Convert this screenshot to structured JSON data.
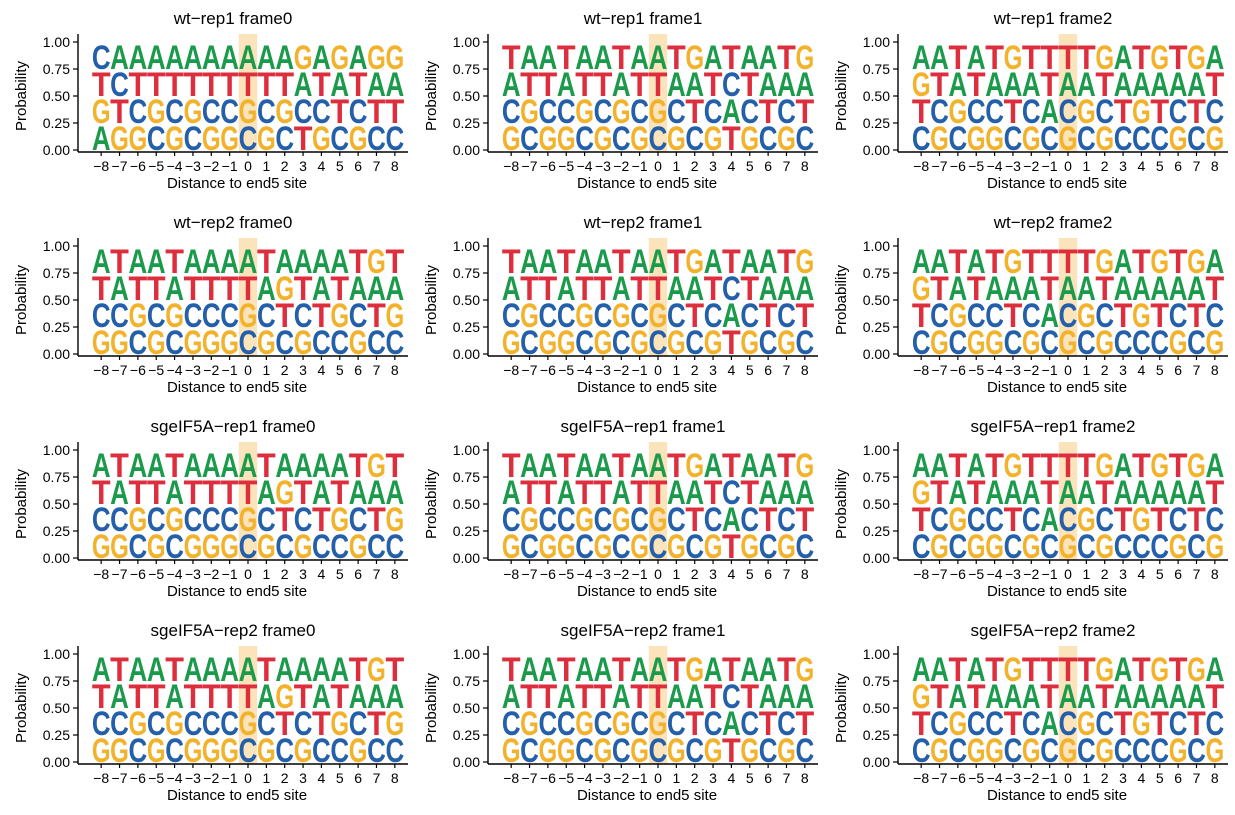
{
  "figure": {
    "axis_labels": {
      "ylabel": "Probability",
      "xlabel": "Distance to  end5 site"
    },
    "colors": {
      "A": "#1a9a4a",
      "C": "#245faa",
      "G": "#f2b22c",
      "T": "#dc2e3c",
      "highlight": "#fbe3bb"
    }
  },
  "chart_data": [
    {
      "type": "sequence_logo",
      "title": "wt−rep1 frame0",
      "xlabel": "Distance to  end5 site",
      "ylabel": "Probability",
      "x_ticks": [
        "−8",
        "−7",
        "−6",
        "−5",
        "−4",
        "−3",
        "−2",
        "−1",
        "0",
        "1",
        "2",
        "3",
        "4",
        "5",
        "6",
        "7",
        "8"
      ],
      "y_ticks": [
        "0.00",
        "0.25",
        "0.50",
        "0.75",
        "1.00"
      ],
      "ylim": [
        0,
        1
      ],
      "highlight_position": "0",
      "stacks": [
        "AGTC",
        "GTCA",
        "GCTA",
        "CGTA",
        "GCTA",
        "CGTA",
        "GCTA",
        "GCTA",
        "CGTA",
        "GCTA",
        "CGTA",
        "TCAG",
        "GCTA",
        "CTAG",
        "GCTA",
        "CTAG",
        "CTAG"
      ]
    },
    {
      "type": "sequence_logo",
      "title": "wt−rep1 frame1",
      "xlabel": "Distance to  end5 site",
      "ylabel": "Probability",
      "x_ticks": [
        "−8",
        "−7",
        "−6",
        "−5",
        "−4",
        "−3",
        "−2",
        "−1",
        "0",
        "1",
        "2",
        "3",
        "4",
        "5",
        "6",
        "7",
        "8"
      ],
      "y_ticks": [
        "0.00",
        "0.25",
        "0.50",
        "0.75",
        "1.00"
      ],
      "ylim": [
        0,
        1
      ],
      "highlight_position": "0",
      "stacks": [
        "GCAT",
        "CGTA",
        "GCTA",
        "GCAT",
        "CGTA",
        "GCTA",
        "CGAT",
        "GCTA",
        "CGTA",
        "GCAT",
        "CTAG",
        "GCTA",
        "TACT",
        "GCTA",
        "CTAA",
        "GCAT",
        "CTAG"
      ]
    },
    {
      "type": "sequence_logo",
      "title": "wt−rep1 frame2",
      "xlabel": "Distance to  end5 site",
      "ylabel": "Probability",
      "x_ticks": [
        "−8",
        "−7",
        "−6",
        "−5",
        "−4",
        "−3",
        "−2",
        "−1",
        "0",
        "1",
        "2",
        "3",
        "4",
        "5",
        "6",
        "7",
        "8"
      ],
      "y_ticks": [
        "0.00",
        "0.25",
        "0.50",
        "0.75",
        "1.00"
      ],
      "ylim": [
        0,
        1
      ],
      "highlight_position": "0",
      "stacks": [
        "CTGA",
        "GCTA",
        "CGAT",
        "GCTA",
        "GCAT",
        "CTAG",
        "GCAT",
        "CATT",
        "GCAT",
        "CGAT",
        "GCTG",
        "CTAA",
        "CGAT",
        "CTAG",
        "GCAT",
        "CTAG",
        "GCTA"
      ]
    },
    {
      "type": "sequence_logo",
      "title": "wt−rep2 frame0",
      "xlabel": "Distance to  end5 site",
      "ylabel": "Probability",
      "x_ticks": [
        "−8",
        "−7",
        "−6",
        "−5",
        "−4",
        "−3",
        "−2",
        "−1",
        "0",
        "1",
        "2",
        "3",
        "4",
        "5",
        "6",
        "7",
        "8"
      ],
      "y_ticks": [
        "0.00",
        "0.25",
        "0.50",
        "0.75",
        "1.00"
      ],
      "ylim": [
        0,
        1
      ],
      "highlight_position": "0",
      "stacks": [
        "GCTA",
        "GCAT",
        "CGTA",
        "GCTA",
        "CGAT",
        "GCTA",
        "GCTA",
        "GCTA",
        "CGTA",
        "GCAT",
        "CTGA",
        "GCTA",
        "CTAA",
        "CGTA",
        "GCAT",
        "CTAG",
        "CGAT"
      ]
    },
    {
      "type": "sequence_logo",
      "title": "wt−rep2 frame1",
      "xlabel": "Distance to  end5 site",
      "ylabel": "Probability",
      "x_ticks": [
        "−8",
        "−7",
        "−6",
        "−5",
        "−4",
        "−3",
        "−2",
        "−1",
        "0",
        "1",
        "2",
        "3",
        "4",
        "5",
        "6",
        "7",
        "8"
      ],
      "y_ticks": [
        "0.00",
        "0.25",
        "0.50",
        "0.75",
        "1.00"
      ],
      "ylim": [
        0,
        1
      ],
      "highlight_position": "0",
      "stacks": [
        "GCAT",
        "CGTA",
        "GCTA",
        "GCAT",
        "CGTA",
        "GCTA",
        "CGAT",
        "GCTA",
        "CGTA",
        "GCAT",
        "CTAG",
        "GCTA",
        "TACT",
        "GCTA",
        "CTAA",
        "GCAT",
        "CTAG"
      ]
    },
    {
      "type": "sequence_logo",
      "title": "wt−rep2 frame2",
      "xlabel": "Distance to  end5 site",
      "ylabel": "Probability",
      "x_ticks": [
        "−8",
        "−7",
        "−6",
        "−5",
        "−4",
        "−3",
        "−2",
        "−1",
        "0",
        "1",
        "2",
        "3",
        "4",
        "5",
        "6",
        "7",
        "8"
      ],
      "y_ticks": [
        "0.00",
        "0.25",
        "0.50",
        "0.75",
        "1.00"
      ],
      "ylim": [
        0,
        1
      ],
      "highlight_position": "0",
      "stacks": [
        "CTGA",
        "GCTA",
        "CGAT",
        "GCTA",
        "GCAT",
        "CTAG",
        "GCAT",
        "CATT",
        "GCAT",
        "CGAT",
        "GCTG",
        "CTAA",
        "CGAT",
        "CTAG",
        "GCAT",
        "CTAG",
        "GCTA"
      ]
    },
    {
      "type": "sequence_logo",
      "title": "sgeIF5A−rep1 frame0",
      "xlabel": "Distance to  end5 site",
      "ylabel": "Probability",
      "x_ticks": [
        "−8",
        "−7",
        "−6",
        "−5",
        "−4",
        "−3",
        "−2",
        "−1",
        "0",
        "1",
        "2",
        "3",
        "4",
        "5",
        "6",
        "7",
        "8"
      ],
      "y_ticks": [
        "0.00",
        "0.25",
        "0.50",
        "0.75",
        "1.00"
      ],
      "ylim": [
        0,
        1
      ],
      "highlight_position": "0",
      "stacks": [
        "GCTA",
        "GCAT",
        "CGTA",
        "GCTA",
        "CGAT",
        "GCTA",
        "GCTA",
        "GCTA",
        "CGTA",
        "GCAT",
        "CTGA",
        "GCTA",
        "CTAA",
        "CGTA",
        "GCAT",
        "CTAG",
        "CGAT"
      ]
    },
    {
      "type": "sequence_logo",
      "title": "sgeIF5A−rep1 frame1",
      "xlabel": "Distance to  end5 site",
      "ylabel": "Probability",
      "x_ticks": [
        "−8",
        "−7",
        "−6",
        "−5",
        "−4",
        "−3",
        "−2",
        "−1",
        "0",
        "1",
        "2",
        "3",
        "4",
        "5",
        "6",
        "7",
        "8"
      ],
      "y_ticks": [
        "0.00",
        "0.25",
        "0.50",
        "0.75",
        "1.00"
      ],
      "ylim": [
        0,
        1
      ],
      "highlight_position": "0",
      "stacks": [
        "GCAT",
        "CGTA",
        "GCTA",
        "GCAT",
        "CGTA",
        "GCTA",
        "CGAT",
        "GCTA",
        "CGTA",
        "GCAT",
        "CTAG",
        "GCTA",
        "TACT",
        "GCTA",
        "CTAA",
        "GCAT",
        "CTAG"
      ]
    },
    {
      "type": "sequence_logo",
      "title": "sgeIF5A−rep1 frame2",
      "xlabel": "Distance to  end5 site",
      "ylabel": "Probability",
      "x_ticks": [
        "−8",
        "−7",
        "−6",
        "−5",
        "−4",
        "−3",
        "−2",
        "−1",
        "0",
        "1",
        "2",
        "3",
        "4",
        "5",
        "6",
        "7",
        "8"
      ],
      "y_ticks": [
        "0.00",
        "0.25",
        "0.50",
        "0.75",
        "1.00"
      ],
      "ylim": [
        0,
        1
      ],
      "highlight_position": "0",
      "stacks": [
        "CTGA",
        "GCTA",
        "CGAT",
        "GCTA",
        "GCAT",
        "CTAG",
        "GCAT",
        "CATT",
        "GCAT",
        "CGAT",
        "GCTG",
        "CTAA",
        "CGAT",
        "CTAG",
        "GCAT",
        "CTAG",
        "GCTA"
      ]
    },
    {
      "type": "sequence_logo",
      "title": "sgeIF5A−rep2 frame0",
      "xlabel": "Distance to  end5 site",
      "ylabel": "Probability",
      "x_ticks": [
        "−8",
        "−7",
        "−6",
        "−5",
        "−4",
        "−3",
        "−2",
        "−1",
        "0",
        "1",
        "2",
        "3",
        "4",
        "5",
        "6",
        "7",
        "8"
      ],
      "y_ticks": [
        "0.00",
        "0.25",
        "0.50",
        "0.75",
        "1.00"
      ],
      "ylim": [
        0,
        1
      ],
      "highlight_position": "0",
      "stacks": [
        "GCTA",
        "GCAT",
        "CGTA",
        "GCTA",
        "CGAT",
        "GCTA",
        "GCTA",
        "GCTA",
        "CGTA",
        "GCAT",
        "CTGA",
        "GCTA",
        "CTAA",
        "CGTA",
        "GCAT",
        "CTAG",
        "CGAT"
      ]
    },
    {
      "type": "sequence_logo",
      "title": "sgeIF5A−rep2 frame1",
      "xlabel": "Distance to  end5 site",
      "ylabel": "Probability",
      "x_ticks": [
        "−8",
        "−7",
        "−6",
        "−5",
        "−4",
        "−3",
        "−2",
        "−1",
        "0",
        "1",
        "2",
        "3",
        "4",
        "5",
        "6",
        "7",
        "8"
      ],
      "y_ticks": [
        "0.00",
        "0.25",
        "0.50",
        "0.75",
        "1.00"
      ],
      "ylim": [
        0,
        1
      ],
      "highlight_position": "0",
      "stacks": [
        "GCAT",
        "CGTA",
        "GCTA",
        "GCAT",
        "CGTA",
        "GCTA",
        "CGAT",
        "GCTA",
        "CGTA",
        "GCAT",
        "CTAG",
        "GCTA",
        "TACT",
        "GCTA",
        "CTAA",
        "GCAT",
        "CTAG"
      ]
    },
    {
      "type": "sequence_logo",
      "title": "sgeIF5A−rep2 frame2",
      "xlabel": "Distance to  end5 site",
      "ylabel": "Probability",
      "x_ticks": [
        "−8",
        "−7",
        "−6",
        "−5",
        "−4",
        "−3",
        "−2",
        "−1",
        "0",
        "1",
        "2",
        "3",
        "4",
        "5",
        "6",
        "7",
        "8"
      ],
      "y_ticks": [
        "0.00",
        "0.25",
        "0.50",
        "0.75",
        "1.00"
      ],
      "ylim": [
        0,
        1
      ],
      "highlight_position": "0",
      "stacks": [
        "CTGA",
        "GCTA",
        "CGAT",
        "GCTA",
        "GCAT",
        "CTAG",
        "GCAT",
        "CATT",
        "GCAT",
        "CGAT",
        "GCTG",
        "CTAA",
        "CGAT",
        "CTAG",
        "GCAT",
        "CTAG",
        "GCTA"
      ]
    }
  ]
}
